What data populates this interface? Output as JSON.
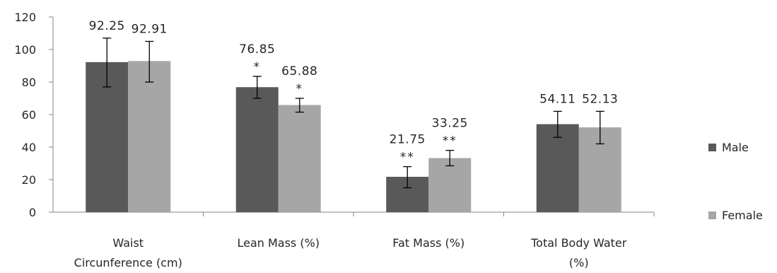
{
  "chart_data": {
    "type": "bar",
    "title": "",
    "xlabel": "",
    "ylabel": "",
    "ylim": [
      0,
      120
    ],
    "yticks": [
      0,
      20,
      40,
      60,
      80,
      100,
      120
    ],
    "grid": false,
    "legend_position": "right",
    "categories": [
      [
        "Waist",
        "Circunference (cm)"
      ],
      [
        "Lean Mass (%)"
      ],
      [
        "Fat Mass (%)"
      ],
      [
        "Total Body Water",
        "(%)"
      ]
    ],
    "series": [
      {
        "name": "Male",
        "color": "#595959",
        "values": [
          92.25,
          76.85,
          21.75,
          54.11
        ],
        "labels": [
          "92.25",
          "76.85",
          "21.75",
          "54.11"
        ],
        "error_low": [
          77,
          70,
          15,
          46
        ],
        "error_high": [
          107,
          83.5,
          28,
          62
        ],
        "significance": [
          "",
          "*",
          "**",
          ""
        ]
      },
      {
        "name": "Female",
        "color": "#a6a6a6",
        "values": [
          92.91,
          65.88,
          33.25,
          52.13
        ],
        "labels": [
          "92.91",
          "65.88",
          "33.25",
          "52.13"
        ],
        "error_low": [
          80,
          61.5,
          28.5,
          42
        ],
        "error_high": [
          105,
          70,
          38,
          62
        ],
        "significance": [
          "",
          "*",
          "**",
          ""
        ]
      }
    ]
  }
}
